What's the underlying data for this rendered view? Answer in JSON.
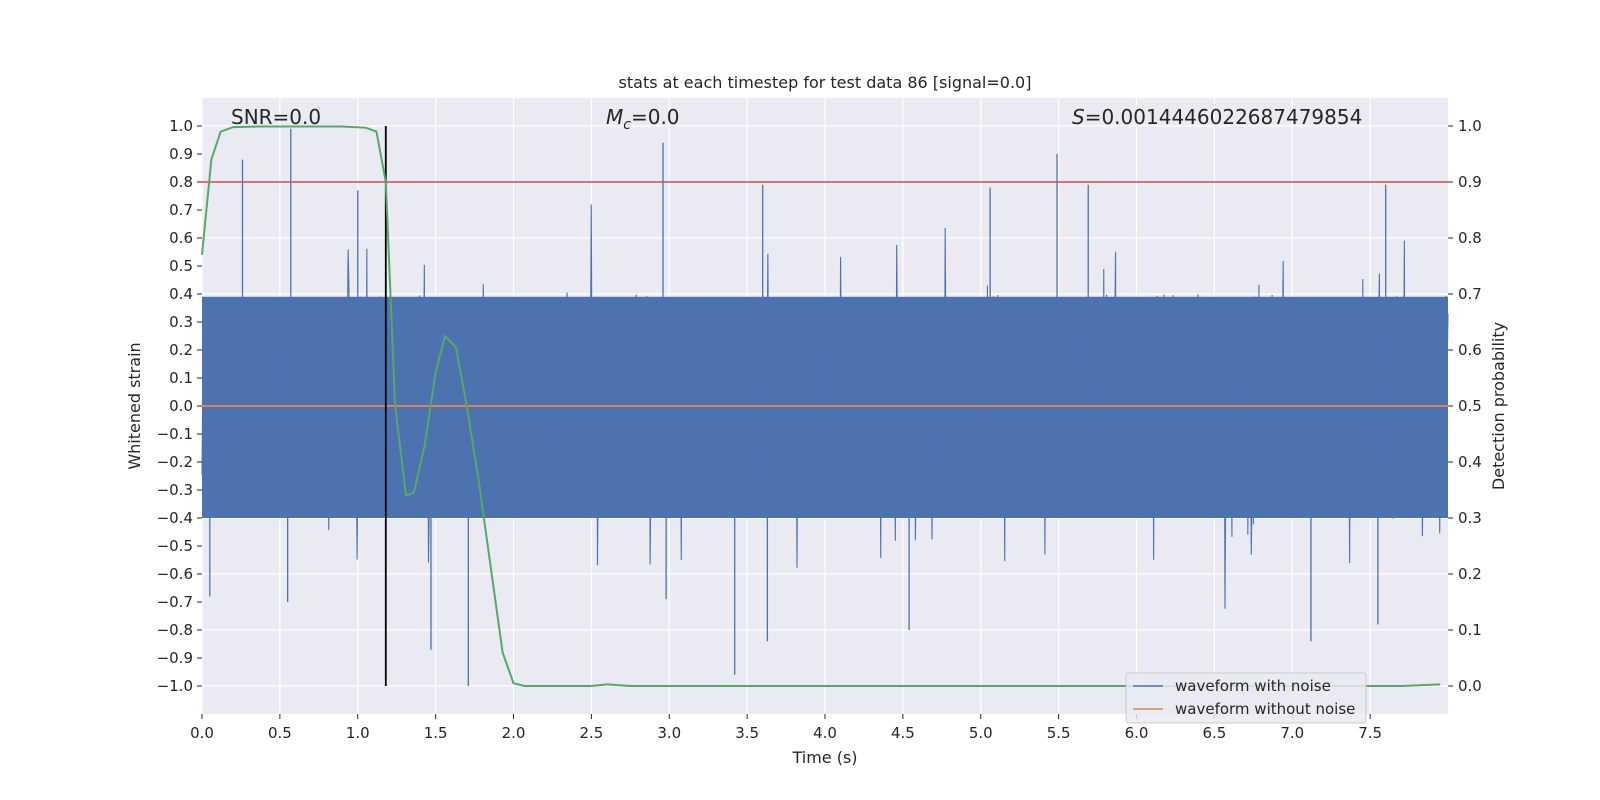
{
  "chart_data": {
    "type": "line",
    "title": "stats at each timestep for test data 86 [signal=0.0]",
    "xlabel": "Time (s)",
    "ylabel": "Whitened strain",
    "y2label": "Detection probability",
    "xlim": [
      0.0,
      8.0
    ],
    "ylim": [
      -1.1,
      1.1
    ],
    "y2lim": [
      -0.05,
      1.05
    ],
    "xticks": [
      0.0,
      0.5,
      1.0,
      1.5,
      2.0,
      2.5,
      3.0,
      3.5,
      4.0,
      4.5,
      5.0,
      5.5,
      6.0,
      6.5,
      7.0,
      7.5
    ],
    "xtick_labels": [
      "0.0",
      "0.5",
      "1.0",
      "1.5",
      "2.0",
      "2.5",
      "3.0",
      "3.5",
      "4.0",
      "4.5",
      "5.0",
      "5.5",
      "6.0",
      "6.5",
      "7.0",
      "7.5"
    ],
    "yticks": [
      1.0,
      0.9,
      0.8,
      0.7,
      0.6,
      0.5,
      0.4,
      0.3,
      0.2,
      0.1,
      0.0,
      -0.1,
      -0.2,
      -0.3,
      -0.4,
      -0.5,
      -0.6,
      -0.7,
      -0.8,
      -0.9,
      -1.0
    ],
    "ytick_labels": [
      "1.0",
      "0.9",
      "0.8",
      "0.7",
      "0.6",
      "0.5",
      "0.4",
      "0.3",
      "0.2",
      "0.1",
      "0.0",
      "−0.1",
      "−0.2",
      "−0.3",
      "−0.4",
      "−0.5",
      "−0.6",
      "−0.7",
      "−0.8",
      "−0.9",
      "−1.0"
    ],
    "y2ticks": [
      1.0,
      0.9,
      0.8,
      0.7,
      0.6,
      0.5,
      0.4,
      0.3,
      0.2,
      0.1,
      0.0
    ],
    "y2tick_labels": [
      "1.0",
      "0.9",
      "0.8",
      "0.7",
      "0.6",
      "0.5",
      "0.4",
      "0.3",
      "0.2",
      "0.1",
      "0.0"
    ],
    "grid": true,
    "legend_position": "bottom-right",
    "annotations": {
      "snr": "SNR=0.0",
      "mc_symbol": "M",
      "mc_sub": "c",
      "mc_value": "=0.0",
      "s_symbol": "S",
      "s_value": "=0.0014446022687479854"
    },
    "series": [
      {
        "name": "waveform with noise",
        "axis": "left",
        "color": "#4c72b0",
        "description_noise": "dense noise series; approx. 8192 samples over 0-8 s, envelope roughly ±0.4 with spikes",
        "peaks": [
          {
            "t": 0.26,
            "v": 0.88
          },
          {
            "t": 0.57,
            "v": 0.99
          },
          {
            "t": 1.0,
            "v": 0.77
          },
          {
            "t": 2.96,
            "v": 0.94
          },
          {
            "t": 3.6,
            "v": 0.79
          },
          {
            "t": 5.06,
            "v": 0.78
          },
          {
            "t": 5.49,
            "v": 0.9
          },
          {
            "t": 5.69,
            "v": 0.79
          },
          {
            "t": 7.6,
            "v": 0.79
          },
          {
            "t": 0.05,
            "v": -0.68
          },
          {
            "t": 0.55,
            "v": -0.7
          },
          {
            "t": 1.47,
            "v": -0.87
          },
          {
            "t": 1.71,
            "v": -1.0
          },
          {
            "t": 2.98,
            "v": -0.69
          },
          {
            "t": 3.42,
            "v": -0.96
          },
          {
            "t": 3.63,
            "v": -0.84
          },
          {
            "t": 4.54,
            "v": -0.8
          },
          {
            "t": 7.12,
            "v": -0.84
          },
          {
            "t": 7.55,
            "v": -0.78
          }
        ]
      },
      {
        "name": "waveform without noise",
        "axis": "left",
        "color": "#dd8452",
        "x": [
          0.0,
          8.0
        ],
        "y": [
          0.0,
          0.0
        ]
      },
      {
        "name": "detection probability",
        "axis": "right",
        "color": "#55a868",
        "x": [
          0.0,
          0.06,
          0.12,
          0.2,
          0.35,
          0.5,
          0.7,
          0.9,
          1.05,
          1.12,
          1.18,
          1.24,
          1.31,
          1.36,
          1.43,
          1.5,
          1.56,
          1.63,
          1.7,
          1.78,
          1.86,
          1.93,
          2.0,
          2.07,
          2.2,
          2.5,
          2.6,
          2.75,
          3.0,
          4.0,
          5.0,
          6.0,
          7.0,
          7.7,
          7.95
        ],
        "y": [
          0.77,
          0.94,
          0.99,
          0.998,
          0.999,
          0.999,
          0.999,
          0.999,
          0.997,
          0.99,
          0.9,
          0.5,
          0.34,
          0.345,
          0.43,
          0.56,
          0.625,
          0.605,
          0.5,
          0.36,
          0.2,
          0.06,
          0.005,
          0.0,
          0.0,
          0.0,
          0.003,
          0.0,
          0.0,
          0.0,
          0.0,
          0.0,
          0.0,
          0.0,
          0.003
        ]
      }
    ],
    "threshold_line": {
      "axis": "right",
      "value": 0.9,
      "color": "#c44e52"
    },
    "vertical_line": {
      "x": 1.18,
      "ymin": -1.0,
      "ymax": 1.0,
      "color": "#000000"
    },
    "legend": [
      "waveform with noise",
      "waveform without noise"
    ]
  }
}
